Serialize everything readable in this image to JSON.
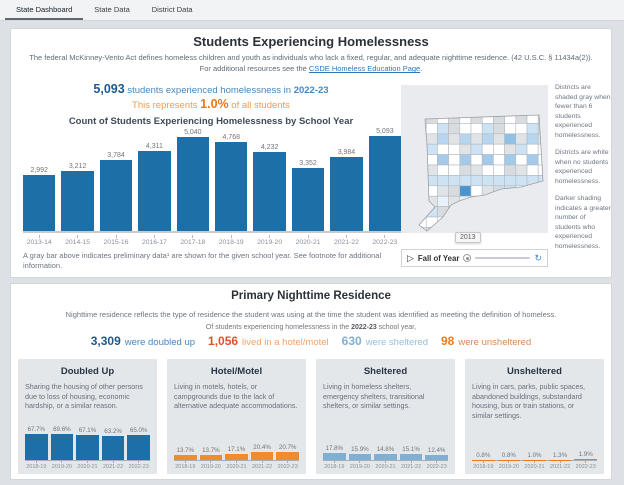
{
  "tabs": [
    {
      "label": "State Dashboard",
      "active": true
    },
    {
      "label": "State Data",
      "active": false
    },
    {
      "label": "District Data",
      "active": false
    }
  ],
  "panel1": {
    "title": "Students Experiencing Homelessness",
    "desc_pre": "The federal McKinney-Vento Act defines homeless children and youth as individuals who lack a fixed, regular, and adequate nighttime residence. (42 U.S.C. § 11434a(2)). For additional resources see the ",
    "desc_link": "CSDE Homeless Education Page",
    "desc_post": ".",
    "stat1": {
      "value": "5,093",
      "mid": " students experienced homelessness in ",
      "year": "2022-23"
    },
    "stat2": {
      "pre": "This represents ",
      "value": "1.0%",
      "post": " of all students"
    },
    "map_notes": [
      "Districts are shaded gray when fewer than 6 students experienced homelessness.",
      "Districts are white when no students experienced homelessness.",
      "Darker shading indicates a greater number of students who experienced homelessness."
    ],
    "slider": {
      "label": "Fall of Year",
      "tooltip": "2013",
      "play_icon": "▷",
      "loop_icon": "↻"
    },
    "footnote": "A gray bar above indicates preliminary data¹ are shown for the given school year. See footnote for additional information."
  },
  "panel2": {
    "title": "Primary Nighttime Residence",
    "desc": "Nighttime residence reflects the type of residence the student was using at the time the student was identified as meeting the definition of homeless.",
    "intro": {
      "pre": "Of students experiencing homelessness in the ",
      "year": "2022-23",
      "post": " school year,"
    },
    "stats": [
      {
        "value": "3,309",
        "label": "were doubled up",
        "value_color": "#1f5a8c",
        "label_color": "#4587bd"
      },
      {
        "value": "1,056",
        "label": "lived in a hotel/motel",
        "value_color": "#e1502d",
        "label_color": "#f5a264"
      },
      {
        "value": "630",
        "label": "were sheltered",
        "value_color": "#7fb0d4",
        "label_color": "#96bedb"
      },
      {
        "value": "98",
        "label": "were unsheltered",
        "value_color": "#ef7a1a",
        "label_color": "#d98a4f"
      }
    ],
    "cards": [
      {
        "title": "Doubled Up",
        "text": "Sharing the housing of other persons due to loss of housing, economic hardship, or a similar reason."
      },
      {
        "title": "Hotel/Motel",
        "text": "Living in motels, hotels, or campgrounds due to the lack of alternative adequate accommodations."
      },
      {
        "title": "Sheltered",
        "text": "Living in homeless shelters, emergency shelters, transitional shelters, or similar settings."
      },
      {
        "title": "Unsheltered",
        "text": "Living in cars, parks, public spaces, abandoned buildings, substandard housing, bus or train stations, or similar settings."
      }
    ]
  },
  "colors": {
    "bar_blue": "#1d6fa8",
    "bar_orange": "#f08c2e",
    "bar_light_blue": "#7fb0d4",
    "bar_unsheltered_orange": "#ef7a1a",
    "stat_dark_blue": "#1f5a8c",
    "stat_orange": "#ee7612",
    "link_blue": "#2e77bb"
  },
  "chart_data": [
    {
      "type": "bar",
      "title": "Count of Students Experiencing Homelessness by School Year",
      "categories": [
        "2013-14",
        "2014-15",
        "2015-16",
        "2016-17",
        "2017-18",
        "2018-19",
        "2019-20",
        "2020-21",
        "2021-22",
        "2022-23"
      ],
      "values": [
        2992,
        3212,
        3784,
        4311,
        5040,
        4768,
        4232,
        3352,
        3984,
        5093
      ],
      "labels": [
        "2,992",
        "3,212",
        "3,784",
        "4,311",
        "5,040",
        "4,768",
        "4,232",
        "3,352",
        "3,984",
        "5,093"
      ],
      "color": "#1d6fa8",
      "ylim": [
        0,
        5093
      ],
      "grid": false,
      "legend": "none"
    },
    {
      "type": "bar",
      "title": "Doubled Up",
      "categories": [
        "2018-19",
        "2019-20",
        "2020-21",
        "2021-22",
        "2022-23"
      ],
      "values": [
        67.7,
        69.6,
        67.1,
        63.2,
        65.0
      ],
      "labels": [
        "67.7%",
        "69.6%",
        "67.1%",
        "63.2%",
        "65.0%"
      ],
      "color": "#1d6fa8",
      "ylim": [
        0,
        70
      ]
    },
    {
      "type": "bar",
      "title": "Hotel/Motel",
      "categories": [
        "2018-19",
        "2019-20",
        "2020-21",
        "2021-22",
        "2022-23"
      ],
      "values": [
        13.7,
        13.7,
        17.1,
        20.4,
        20.7
      ],
      "labels": [
        "13.7%",
        "13.7%",
        "17.1%",
        "20.4%",
        "20.7%"
      ],
      "color": "#f08c2e",
      "ylim": [
        0,
        70
      ]
    },
    {
      "type": "bar",
      "title": "Sheltered",
      "categories": [
        "2018-19",
        "2019-20",
        "2020-21",
        "2021-22",
        "2022-23"
      ],
      "values": [
        17.8,
        15.9,
        14.8,
        15.1,
        12.4
      ],
      "labels": [
        "17.8%",
        "15.9%",
        "14.8%",
        "15.1%",
        "12.4%"
      ],
      "color": "#7fb0d4",
      "ylim": [
        0,
        70
      ]
    },
    {
      "type": "bar",
      "title": "Unsheltered",
      "categories": [
        "2018-19",
        "2019-20",
        "2020-21",
        "2021-22",
        "2022-23"
      ],
      "values": [
        0.8,
        0.8,
        1.0,
        1.3,
        1.9
      ],
      "labels": [
        "0.8%",
        "0.8%",
        "1.0%",
        "1.3%",
        "1.9%"
      ],
      "color": "#ef7a1a",
      "ylim": [
        0,
        70
      ]
    }
  ]
}
